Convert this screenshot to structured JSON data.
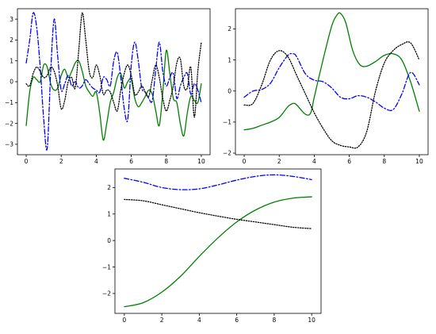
{
  "colors": {
    "green": "#008000",
    "blue": "#0000ff",
    "black": "#000000",
    "frame": "#000000",
    "background": "#ffffff"
  },
  "chart_data": [
    {
      "type": "line",
      "title": "",
      "xlabel": "",
      "ylabel": "",
      "xlim": [
        -0.5,
        10.5
      ],
      "ylim": [
        -3.5,
        3.5
      ],
      "xticks": [
        0,
        2,
        4,
        6,
        8,
        10
      ],
      "yticks": [
        -3,
        -2,
        -1,
        0,
        1,
        2,
        3
      ],
      "grid": false,
      "legend": "none",
      "series": [
        {
          "color": "#008000",
          "style": "solid",
          "x": [
            0.0,
            0.2,
            0.4,
            0.6,
            0.8,
            1.0,
            1.2,
            1.4,
            1.6,
            1.8,
            2.0,
            2.2,
            2.4,
            2.6,
            2.8,
            3.0,
            3.2,
            3.4,
            3.6,
            3.8,
            4.0,
            4.2,
            4.4,
            4.6,
            4.8,
            5.0,
            5.2,
            5.4,
            5.6,
            5.8,
            6.0,
            6.2,
            6.4,
            6.6,
            6.8,
            7.0,
            7.2,
            7.4,
            7.6,
            7.8,
            8.0,
            8.2,
            8.4,
            8.6,
            8.8,
            9.0,
            9.2,
            9.4,
            9.6,
            9.8,
            10.0
          ],
          "y": [
            -2.1,
            -0.5,
            0.2,
            0.1,
            0.0,
            0.8,
            0.7,
            -0.1,
            -0.4,
            -0.3,
            0.3,
            0.6,
            0.2,
            0.5,
            0.9,
            1.0,
            0.5,
            -0.2,
            -0.5,
            -0.7,
            -0.5,
            -1.5,
            -2.8,
            -2.0,
            -1.0,
            -0.5,
            0.2,
            0.4,
            -0.3,
            0.0,
            0.1,
            -0.8,
            -1.2,
            -1.0,
            -0.7,
            -0.4,
            -0.6,
            -1.4,
            -2.1,
            -0.5,
            1.5,
            0.4,
            -0.8,
            -1.0,
            -2.0,
            -2.6,
            -1.5,
            -0.7,
            -0.9,
            -1.0,
            -0.1
          ]
        },
        {
          "color": "#0000ff",
          "style": "dashdot",
          "x": [
            0.0,
            0.2,
            0.4,
            0.6,
            0.8,
            1.0,
            1.2,
            1.4,
            1.6,
            1.8,
            2.0,
            2.2,
            2.4,
            2.6,
            2.8,
            3.0,
            3.2,
            3.4,
            3.6,
            3.8,
            4.0,
            4.2,
            4.4,
            4.6,
            4.8,
            5.0,
            5.2,
            5.4,
            5.6,
            5.8,
            6.0,
            6.2,
            6.4,
            6.6,
            6.8,
            7.0,
            7.2,
            7.4,
            7.6,
            7.8,
            8.0,
            8.2,
            8.4,
            8.6,
            8.8,
            9.0,
            9.2,
            9.4,
            9.6,
            9.8,
            10.0
          ],
          "y": [
            0.9,
            2.0,
            3.3,
            2.6,
            0.7,
            -1.8,
            -3.2,
            0.5,
            3.0,
            1.2,
            -0.4,
            -0.1,
            0.3,
            -0.2,
            0.0,
            -0.3,
            -0.2,
            0.1,
            -0.1,
            -0.3,
            -0.4,
            -0.5,
            0.2,
            0.1,
            -0.2,
            1.0,
            1.4,
            0.2,
            -1.3,
            -1.8,
            0.8,
            1.9,
            1.0,
            -0.3,
            -0.5,
            -0.8,
            -0.9,
            0.6,
            1.9,
            0.5,
            -0.2,
            0.2,
            0.4,
            -0.8,
            -0.2,
            0.2,
            0.4,
            -0.6,
            -0.1,
            -0.4,
            -1.0
          ]
        },
        {
          "color": "#000000",
          "style": "dotted",
          "x": [
            0.0,
            0.2,
            0.4,
            0.6,
            0.8,
            1.0,
            1.2,
            1.4,
            1.6,
            1.8,
            2.0,
            2.2,
            2.4,
            2.6,
            2.8,
            3.0,
            3.2,
            3.4,
            3.6,
            3.8,
            4.0,
            4.2,
            4.4,
            4.6,
            4.8,
            5.0,
            5.2,
            5.4,
            5.6,
            5.8,
            6.0,
            6.2,
            6.4,
            6.6,
            6.8,
            7.0,
            7.2,
            7.4,
            7.6,
            7.8,
            8.0,
            8.2,
            8.4,
            8.6,
            8.8,
            9.0,
            9.2,
            9.4,
            9.6,
            9.8,
            10.0
          ],
          "y": [
            -0.1,
            -0.2,
            0.4,
            0.7,
            0.5,
            0.2,
            0.3,
            0.7,
            0.5,
            -0.2,
            -1.3,
            -0.9,
            0.0,
            0.2,
            -0.3,
            1.5,
            3.3,
            2.0,
            0.5,
            0.2,
            0.8,
            0.3,
            -0.6,
            -0.4,
            -0.5,
            -1.0,
            -1.4,
            -0.4,
            0.4,
            0.8,
            0.3,
            -0.6,
            -0.5,
            -0.2,
            -0.5,
            -0.7,
            0.1,
            0.8,
            0.2,
            -0.8,
            -1.4,
            -0.9,
            -0.2,
            0.9,
            1.1,
            -0.2,
            -0.3,
            0.7,
            -1.7,
            0.5,
            1.9
          ]
        }
      ]
    },
    {
      "type": "line",
      "title": "",
      "xlabel": "",
      "ylabel": "",
      "xlim": [
        -0.5,
        10.5
      ],
      "ylim": [
        -2.05,
        2.65
      ],
      "xticks": [
        0,
        2,
        4,
        6,
        8,
        10
      ],
      "yticks": [
        -2,
        -1,
        0,
        1,
        2
      ],
      "grid": false,
      "legend": "none",
      "series": [
        {
          "color": "#008000",
          "style": "solid",
          "x": [
            0.0,
            0.5,
            1.0,
            1.5,
            2.0,
            2.5,
            2.8,
            3.0,
            3.5,
            3.8,
            4.0,
            4.5,
            5.0,
            5.3,
            5.5,
            5.8,
            6.2,
            6.6,
            7.0,
            7.5,
            8.0,
            8.5,
            9.0,
            9.5,
            10.0
          ],
          "y": [
            -1.25,
            -1.2,
            -1.1,
            -1.0,
            -0.85,
            -0.5,
            -0.4,
            -0.45,
            -0.75,
            -0.7,
            -0.2,
            1.0,
            2.1,
            2.45,
            2.5,
            2.2,
            1.3,
            0.85,
            0.8,
            0.95,
            1.15,
            1.2,
            1.0,
            0.3,
            -0.65
          ]
        },
        {
          "color": "#0000ff",
          "style": "dashdot",
          "x": [
            0.0,
            0.5,
            1.0,
            1.5,
            2.0,
            2.5,
            2.8,
            3.0,
            3.5,
            4.0,
            4.5,
            5.0,
            5.5,
            6.0,
            6.5,
            7.0,
            7.5,
            8.0,
            8.5,
            9.0,
            9.5,
            10.0
          ],
          "y": [
            -0.2,
            0.0,
            0.05,
            0.25,
            0.75,
            1.15,
            1.2,
            1.1,
            0.55,
            0.35,
            0.3,
            0.1,
            -0.2,
            -0.25,
            -0.15,
            -0.2,
            -0.35,
            -0.55,
            -0.6,
            -0.1,
            0.6,
            0.2
          ]
        },
        {
          "color": "#000000",
          "style": "dotted",
          "x": [
            0.0,
            0.5,
            1.0,
            1.5,
            2.0,
            2.5,
            3.0,
            3.5,
            4.0,
            4.5,
            5.0,
            5.5,
            6.0,
            6.5,
            7.0,
            7.5,
            8.0,
            8.5,
            9.0,
            9.5,
            10.0
          ],
          "y": [
            -0.45,
            -0.4,
            0.2,
            1.0,
            1.3,
            1.1,
            0.5,
            -0.1,
            -0.7,
            -1.2,
            -1.6,
            -1.75,
            -1.8,
            -1.8,
            -1.3,
            0.0,
            0.9,
            1.3,
            1.5,
            1.55,
            1.0
          ]
        }
      ]
    },
    {
      "type": "line",
      "title": "",
      "xlabel": "",
      "ylabel": "",
      "xlim": [
        -0.5,
        10.5
      ],
      "ylim": [
        -2.75,
        2.7
      ],
      "xticks": [
        0,
        2,
        4,
        6,
        8,
        10
      ],
      "yticks": [
        -2,
        -1,
        0,
        1,
        2
      ],
      "grid": false,
      "legend": "none",
      "series": [
        {
          "color": "#008000",
          "style": "solid",
          "x": [
            0,
            1,
            2,
            3,
            4,
            5,
            6,
            7,
            8,
            9,
            10
          ],
          "y": [
            -2.5,
            -2.35,
            -1.95,
            -1.35,
            -0.6,
            0.1,
            0.7,
            1.15,
            1.45,
            1.6,
            1.65
          ]
        },
        {
          "color": "#0000ff",
          "style": "dashdot",
          "x": [
            0,
            1,
            2,
            3,
            4,
            5,
            6,
            7,
            8,
            9,
            10
          ],
          "y": [
            2.35,
            2.2,
            2.0,
            1.92,
            1.95,
            2.1,
            2.28,
            2.42,
            2.48,
            2.42,
            2.3
          ]
        },
        {
          "color": "#000000",
          "style": "dotted",
          "x": [
            0,
            1,
            2,
            3,
            4,
            5,
            6,
            7,
            8,
            9,
            10
          ],
          "y": [
            1.55,
            1.5,
            1.35,
            1.2,
            1.05,
            0.92,
            0.8,
            0.7,
            0.6,
            0.5,
            0.45
          ]
        }
      ]
    }
  ]
}
